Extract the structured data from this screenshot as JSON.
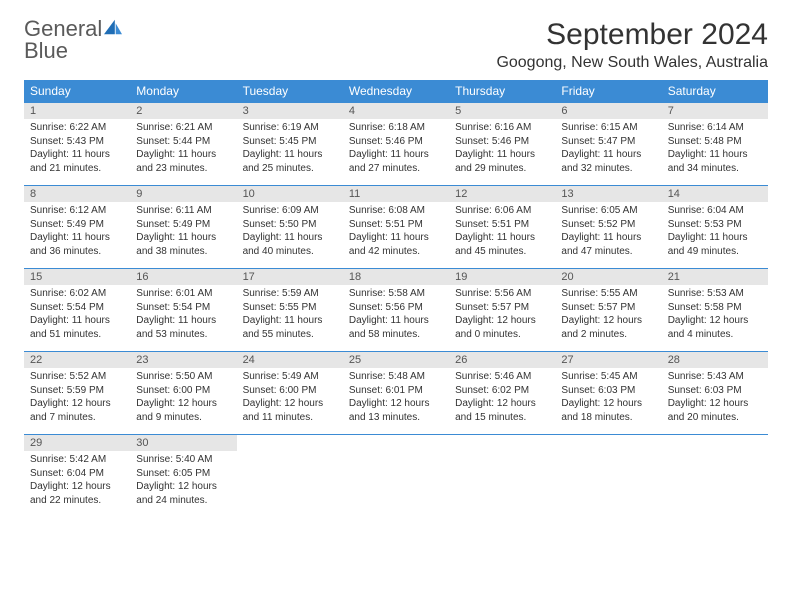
{
  "logo": {
    "text1": "General",
    "text2": "Blue"
  },
  "title": "September 2024",
  "location": "Googong, New South Wales, Australia",
  "colors": {
    "header_bg": "#3b8bd4",
    "header_text": "#ffffff",
    "daynum_bg": "#e6e6e6",
    "rule": "#3b8bd4",
    "logo_gray": "#5a5a5a",
    "logo_blue": "#4a8fd4"
  },
  "day_headers": [
    "Sunday",
    "Monday",
    "Tuesday",
    "Wednesday",
    "Thursday",
    "Friday",
    "Saturday"
  ],
  "weeks": [
    [
      {
        "n": "1",
        "sr": "6:22 AM",
        "ss": "5:43 PM",
        "dl": "11 hours and 21 minutes."
      },
      {
        "n": "2",
        "sr": "6:21 AM",
        "ss": "5:44 PM",
        "dl": "11 hours and 23 minutes."
      },
      {
        "n": "3",
        "sr": "6:19 AM",
        "ss": "5:45 PM",
        "dl": "11 hours and 25 minutes."
      },
      {
        "n": "4",
        "sr": "6:18 AM",
        "ss": "5:46 PM",
        "dl": "11 hours and 27 minutes."
      },
      {
        "n": "5",
        "sr": "6:16 AM",
        "ss": "5:46 PM",
        "dl": "11 hours and 29 minutes."
      },
      {
        "n": "6",
        "sr": "6:15 AM",
        "ss": "5:47 PM",
        "dl": "11 hours and 32 minutes."
      },
      {
        "n": "7",
        "sr": "6:14 AM",
        "ss": "5:48 PM",
        "dl": "11 hours and 34 minutes."
      }
    ],
    [
      {
        "n": "8",
        "sr": "6:12 AM",
        "ss": "5:49 PM",
        "dl": "11 hours and 36 minutes."
      },
      {
        "n": "9",
        "sr": "6:11 AM",
        "ss": "5:49 PM",
        "dl": "11 hours and 38 minutes."
      },
      {
        "n": "10",
        "sr": "6:09 AM",
        "ss": "5:50 PM",
        "dl": "11 hours and 40 minutes."
      },
      {
        "n": "11",
        "sr": "6:08 AM",
        "ss": "5:51 PM",
        "dl": "11 hours and 42 minutes."
      },
      {
        "n": "12",
        "sr": "6:06 AM",
        "ss": "5:51 PM",
        "dl": "11 hours and 45 minutes."
      },
      {
        "n": "13",
        "sr": "6:05 AM",
        "ss": "5:52 PM",
        "dl": "11 hours and 47 minutes."
      },
      {
        "n": "14",
        "sr": "6:04 AM",
        "ss": "5:53 PM",
        "dl": "11 hours and 49 minutes."
      }
    ],
    [
      {
        "n": "15",
        "sr": "6:02 AM",
        "ss": "5:54 PM",
        "dl": "11 hours and 51 minutes."
      },
      {
        "n": "16",
        "sr": "6:01 AM",
        "ss": "5:54 PM",
        "dl": "11 hours and 53 minutes."
      },
      {
        "n": "17",
        "sr": "5:59 AM",
        "ss": "5:55 PM",
        "dl": "11 hours and 55 minutes."
      },
      {
        "n": "18",
        "sr": "5:58 AM",
        "ss": "5:56 PM",
        "dl": "11 hours and 58 minutes."
      },
      {
        "n": "19",
        "sr": "5:56 AM",
        "ss": "5:57 PM",
        "dl": "12 hours and 0 minutes."
      },
      {
        "n": "20",
        "sr": "5:55 AM",
        "ss": "5:57 PM",
        "dl": "12 hours and 2 minutes."
      },
      {
        "n": "21",
        "sr": "5:53 AM",
        "ss": "5:58 PM",
        "dl": "12 hours and 4 minutes."
      }
    ],
    [
      {
        "n": "22",
        "sr": "5:52 AM",
        "ss": "5:59 PM",
        "dl": "12 hours and 7 minutes."
      },
      {
        "n": "23",
        "sr": "5:50 AM",
        "ss": "6:00 PM",
        "dl": "12 hours and 9 minutes."
      },
      {
        "n": "24",
        "sr": "5:49 AM",
        "ss": "6:00 PM",
        "dl": "12 hours and 11 minutes."
      },
      {
        "n": "25",
        "sr": "5:48 AM",
        "ss": "6:01 PM",
        "dl": "12 hours and 13 minutes."
      },
      {
        "n": "26",
        "sr": "5:46 AM",
        "ss": "6:02 PM",
        "dl": "12 hours and 15 minutes."
      },
      {
        "n": "27",
        "sr": "5:45 AM",
        "ss": "6:03 PM",
        "dl": "12 hours and 18 minutes."
      },
      {
        "n": "28",
        "sr": "5:43 AM",
        "ss": "6:03 PM",
        "dl": "12 hours and 20 minutes."
      }
    ],
    [
      {
        "n": "29",
        "sr": "5:42 AM",
        "ss": "6:04 PM",
        "dl": "12 hours and 22 minutes."
      },
      {
        "n": "30",
        "sr": "5:40 AM",
        "ss": "6:05 PM",
        "dl": "12 hours and 24 minutes."
      },
      null,
      null,
      null,
      null,
      null
    ]
  ]
}
